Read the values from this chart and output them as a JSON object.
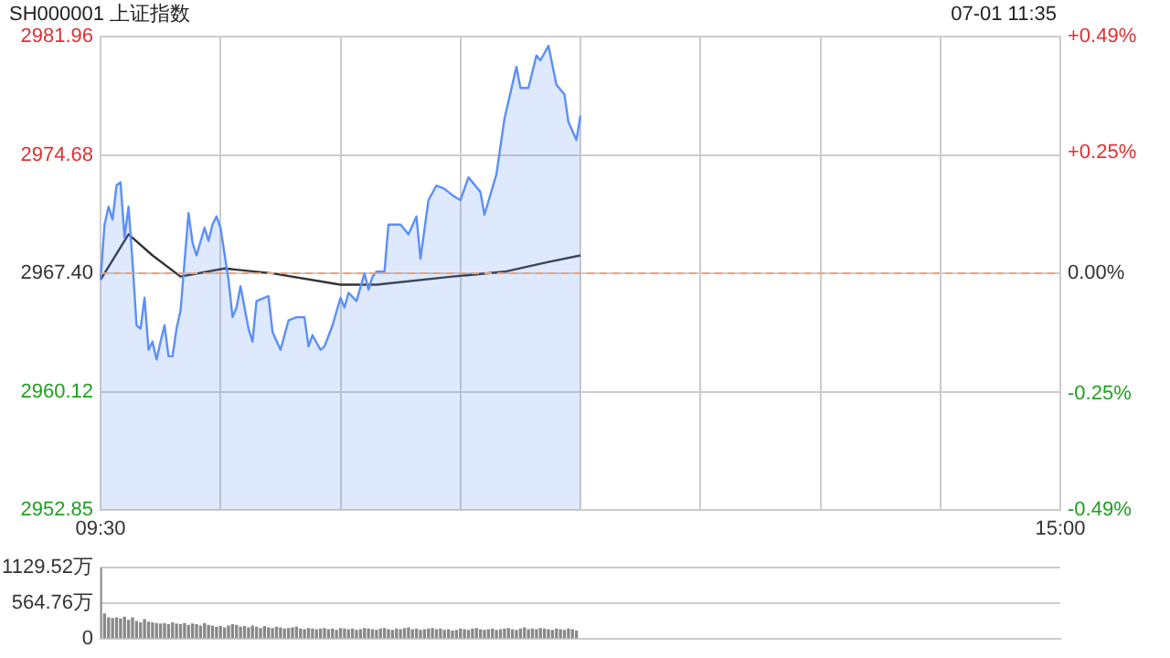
{
  "chart_data": [
    {
      "type": "area",
      "title": "SH000001 上证指数",
      "annotations": [
        "07-01 11:35"
      ],
      "categories": [
        "09:30",
        null,
        null,
        null,
        null,
        null,
        null,
        null,
        null,
        null,
        null,
        null,
        null,
        null,
        null,
        null,
        null,
        null,
        null,
        null,
        null,
        null,
        null,
        null,
        null,
        null,
        null,
        null,
        null,
        null,
        null,
        null,
        null,
        null,
        null,
        null,
        null,
        null,
        null,
        null,
        null,
        null,
        null,
        null,
        null,
        null,
        null,
        null,
        null,
        null,
        null,
        null,
        null,
        null,
        null,
        null,
        null,
        null,
        null,
        null,
        null,
        null,
        null,
        null,
        null,
        null,
        null,
        null,
        null,
        null,
        null,
        null,
        null,
        null,
        null,
        null,
        null,
        null,
        null,
        null,
        null,
        null,
        null,
        null,
        null,
        null,
        null,
        null,
        null,
        null,
        null,
        null,
        null,
        null,
        null,
        null,
        null,
        null,
        null,
        null,
        null,
        null,
        null,
        null,
        null,
        null,
        null,
        null,
        null,
        null,
        null,
        null,
        null,
        null,
        null,
        null,
        null,
        null,
        null,
        null,
        null,
        null,
        null,
        null,
        null,
        null,
        null,
        null,
        null,
        null,
        null,
        null,
        null,
        null,
        null,
        null,
        null,
        null,
        null,
        null,
        null,
        null,
        null,
        null,
        null,
        null,
        null,
        null,
        null,
        null,
        null,
        null,
        null,
        null,
        null,
        null,
        null,
        null,
        null,
        null,
        null,
        null,
        null,
        null,
        null,
        null,
        null,
        null,
        null,
        null,
        null,
        null,
        null,
        null,
        null,
        null,
        null,
        null,
        null,
        null,
        null,
        null,
        null,
        null,
        null,
        null,
        null,
        null,
        null,
        null,
        null,
        null,
        null,
        null,
        null,
        null,
        null,
        null,
        null,
        null,
        null,
        null,
        null,
        null,
        null,
        null,
        null,
        null,
        null,
        null,
        null,
        null,
        null,
        null,
        null,
        null,
        null,
        null,
        null,
        null,
        null,
        null,
        null,
        null,
        null,
        null,
        null,
        null,
        null,
        null,
        null,
        null,
        null,
        null,
        null,
        null,
        null,
        null,
        null,
        null,
        "15:00"
      ],
      "ylim": [
        2952.85,
        2981.96
      ],
      "yticks": [
        2952.85,
        2960.12,
        {
          "value": 2967.4,
          "label": "2967.40"
        },
        2974.68,
        2981.96
      ],
      "y2lim": [
        -0.49,
        0.49
      ],
      "y2ticks": [
        {
          "value": -0.49,
          "label": "-0.49%"
        },
        {
          "value": -0.25,
          "label": "-0.25%"
        },
        {
          "value": 0,
          "label": "0.00%"
        },
        {
          "value": 0.25,
          "label": "+0.25%"
        },
        {
          "value": 0.49,
          "label": "+0.49%"
        }
      ],
      "ref_lines": [
        {
          "axis": "y",
          "value": 2967.4,
          "color": "#f0a070",
          "line_style": "dashed"
        }
      ],
      "grid": true,
      "legend": false,
      "marker": "none",
      "series": [
        {
          "color": "#5b8ff9",
          "values": [
            2967.0,
            2970.4,
            2971.5,
            2970.7,
            2972.8,
            2973.0,
            2969.6,
            2971.5,
            2968.1,
            2964.2,
            2964.0,
            2965.9,
            2962.7,
            2963.2,
            2962.1,
            2963.2,
            2964.2,
            2962.3,
            2962.3,
            2964.0,
            2965.1,
            null,
            2971.1,
            2969.3,
            2968.5,
            null,
            2970.2,
            2969.4,
            2970.4,
            2970.9,
            2970.2,
            null,
            2967.0,
            2964.7,
            2965.3,
            2966.6,
            null,
            2964.0,
            2963.2,
            2965.7,
            null,
            null,
            2966.0,
            2963.8,
            null,
            2962.7,
            null,
            2964.5,
            null,
            2964.7,
            null,
            2964.7,
            2962.9,
            2963.6,
            null,
            2962.7,
            2962.9,
            null,
            2964.2,
            null,
            2965.9,
            2965.3,
            2966.2,
            null,
            2965.7,
            null,
            2967.4,
            2966.4,
            2967.2,
            2967.5,
            null,
            2967.5,
            2970.4,
            null,
            null,
            2970.4,
            null,
            2969.8,
            null,
            2970.9,
            2968.3,
            null,
            2971.9,
            null,
            2972.8,
            null,
            2972.6,
            null,
            2972.2,
            null,
            2971.9,
            null,
            2973.3,
            null,
            null,
            2972.4,
            2971.0,
            null,
            null,
            2973.5,
            null,
            2976.9,
            null,
            null,
            2980.1,
            2978.8,
            null,
            2978.8,
            null,
            2980.8,
            2980.5,
            null,
            2981.4,
            null,
            2979.0,
            null,
            2978.4,
            2976.7,
            null,
            2975.6,
            2977.1,
            null,
            null,
            null,
            null,
            null,
            null,
            null,
            null,
            null,
            null,
            null,
            null,
            null,
            null,
            null,
            null,
            null,
            null,
            null,
            null,
            null,
            null,
            null,
            null,
            null,
            null,
            null,
            null,
            null,
            null,
            null,
            null,
            null,
            null,
            null,
            null,
            null,
            null,
            null,
            null,
            null,
            null,
            null,
            null,
            null,
            null,
            null,
            null,
            null,
            null,
            null,
            null,
            null,
            null,
            null,
            null,
            null,
            null,
            null,
            null,
            null,
            null,
            null,
            null,
            null,
            null,
            null,
            null,
            null,
            null,
            null,
            null,
            null,
            null,
            null,
            null,
            null,
            null,
            null,
            null,
            null,
            null,
            null,
            null,
            null,
            null,
            null,
            null,
            null,
            null,
            null,
            null,
            null,
            null,
            null,
            null,
            null,
            null,
            null,
            null,
            null,
            null,
            null,
            null,
            null,
            null,
            null,
            null,
            null,
            null,
            null,
            null,
            null,
            null,
            null,
            null,
            null,
            null,
            null,
            null
          ]
        },
        {
          "type": "line",
          "color": "#333333",
          "values": [
            2967.0,
            null,
            null,
            null,
            null,
            null,
            null,
            2969.8,
            null,
            null,
            null,
            null,
            null,
            2968.5,
            null,
            null,
            null,
            null,
            null,
            null,
            2967.2,
            null,
            null,
            null,
            null,
            null,
            null,
            null,
            null,
            null,
            null,
            2967.7,
            null,
            null,
            null,
            null,
            null,
            null,
            null,
            null,
            null,
            null,
            null,
            2967.4,
            null,
            null,
            null,
            null,
            null,
            null,
            null,
            null,
            null,
            null,
            null,
            null,
            null,
            null,
            null,
            null,
            2966.7,
            null,
            null,
            null,
            null,
            null,
            null,
            null,
            null,
            2966.7,
            null,
            null,
            null,
            null,
            null,
            null,
            null,
            null,
            null,
            null,
            null,
            null,
            null,
            null,
            null,
            null,
            null,
            null,
            2967.2,
            null,
            null,
            null,
            null,
            null,
            null,
            null,
            null,
            null,
            null,
            null,
            null,
            2967.5,
            null,
            null,
            null,
            null,
            null,
            null,
            null,
            null,
            null,
            null,
            2968.1,
            null,
            null,
            null,
            null,
            null,
            null,
            null,
            2968.5,
            null,
            null,
            null,
            null,
            null,
            null,
            null,
            null,
            null,
            null,
            null,
            null,
            null,
            null,
            null,
            null,
            null,
            null,
            null,
            null,
            null,
            null,
            null,
            null,
            null,
            null,
            null,
            null,
            null,
            null,
            null,
            null,
            null,
            null,
            null,
            null,
            null,
            null,
            null,
            null,
            null,
            null,
            null,
            null,
            null,
            null,
            null,
            null,
            null,
            null,
            null,
            null,
            null,
            null,
            null,
            null,
            null,
            null,
            null,
            null,
            null,
            null,
            null,
            null,
            null,
            null,
            null,
            null,
            null,
            null,
            null,
            null,
            null,
            null,
            null,
            null,
            null,
            null,
            null,
            null,
            null,
            null,
            null,
            null,
            null,
            null,
            null,
            null,
            null,
            null,
            null,
            null,
            null,
            null,
            null,
            null,
            null,
            null,
            null,
            null,
            null,
            null,
            null,
            null,
            null,
            null,
            null,
            null,
            null,
            null,
            null,
            null,
            null,
            null,
            null,
            null,
            null,
            null,
            null,
            null
          ]
        }
      ]
    },
    {
      "type": "bar",
      "tick_labels": "y",
      "grid": "y",
      "legend": false,
      "color": "#888888",
      "categories": [
        null,
        null,
        null,
        null,
        null,
        null,
        null,
        null,
        null,
        null,
        null,
        null,
        null,
        null,
        null,
        null,
        null,
        null,
        null,
        null,
        null,
        null,
        null,
        null,
        null,
        null,
        null,
        null,
        null,
        null,
        null,
        null,
        null,
        null,
        null,
        null,
        null,
        null,
        null,
        null,
        null,
        null,
        null,
        null,
        null,
        null,
        null,
        null,
        null,
        null,
        null,
        null,
        null,
        null,
        null,
        null,
        null,
        null,
        null,
        null,
        null,
        null,
        null,
        null,
        null,
        null,
        null,
        null,
        null,
        null,
        null,
        null,
        null,
        null,
        null,
        null,
        null,
        null,
        null,
        null,
        null,
        null,
        null,
        null,
        null,
        null,
        null,
        null,
        null,
        null,
        null,
        null,
        null,
        null,
        null,
        null,
        null,
        null,
        null,
        null,
        null,
        null,
        null,
        null,
        null,
        null,
        null,
        null,
        null,
        null,
        null,
        null,
        null,
        null,
        null,
        null,
        null,
        null,
        null,
        null,
        null,
        null,
        null,
        null,
        null,
        null,
        null,
        null,
        null,
        null,
        null,
        null,
        null,
        null,
        null,
        null,
        null,
        null,
        null,
        null,
        null,
        null,
        null,
        null,
        null,
        null,
        null,
        null,
        null,
        null,
        null,
        null,
        null,
        null,
        null,
        null,
        null,
        null,
        null,
        null,
        null,
        null,
        null,
        null,
        null,
        null,
        null,
        null,
        null,
        null,
        null,
        null,
        null,
        null,
        null,
        null,
        null,
        null,
        null,
        null,
        null,
        null,
        null,
        null,
        null,
        null,
        null,
        null,
        null,
        null,
        null,
        null,
        null,
        null,
        null,
        null,
        null,
        null,
        null,
        null,
        null,
        null,
        null,
        null,
        null,
        null,
        null,
        null,
        null,
        null,
        null,
        null,
        null,
        null,
        null,
        null,
        null,
        null,
        null,
        null,
        null,
        null,
        null,
        null,
        null,
        null,
        null,
        null,
        null,
        null,
        null,
        null,
        null,
        null,
        null,
        null,
        null,
        null,
        null,
        null,
        null
      ],
      "ylim": [
        0,
        1129.52
      ],
      "yticks": [
        0,
        {
          "value": 564.76,
          "label": "564.76万"
        },
        {
          "value": 1129.52,
          "label": "1129.52万"
        }
      ],
      "values": [
        1120,
        390,
        330,
        320,
        330,
        310,
        340,
        290,
        330,
        270,
        250,
        300,
        260,
        250,
        240,
        230,
        240,
        220,
        250,
        230,
        220,
        240,
        210,
        230,
        220,
        200,
        240,
        210,
        200,
        180,
        190,
        170,
        200,
        220,
        210,
        180,
        190,
        170,
        200,
        180,
        160,
        190,
        170,
        160,
        180,
        170,
        150,
        160,
        170,
        180,
        150,
        140,
        160,
        150,
        140,
        150,
        160,
        140,
        150,
        130,
        160,
        150,
        140,
        150,
        130,
        140,
        160,
        150,
        140,
        130,
        150,
        160,
        140,
        130,
        150,
        140,
        160,
        170,
        140,
        150,
        130,
        140,
        150,
        160,
        140,
        150,
        130,
        140,
        120,
        130,
        150,
        140,
        130,
        150,
        160,
        140,
        130,
        140,
        150,
        130,
        140,
        150,
        160,
        140,
        130,
        150,
        170,
        140,
        150,
        140,
        160,
        150,
        140,
        130,
        150,
        140,
        130,
        150,
        140,
        120,
        null,
        null,
        null,
        null,
        null,
        null,
        null,
        null,
        null,
        null,
        null,
        null,
        null,
        null,
        null,
        null,
        null,
        null,
        null,
        null,
        null,
        null,
        null,
        null,
        null,
        null,
        null,
        null,
        null,
        null,
        null,
        null,
        null,
        null,
        null,
        null,
        null,
        null,
        null,
        null,
        null,
        null,
        null,
        null,
        null,
        null,
        null,
        null,
        null,
        null,
        null,
        null,
        null,
        null,
        null,
        null,
        null,
        null,
        null,
        null,
        null,
        null,
        null,
        null,
        null,
        null,
        null,
        null,
        null,
        null,
        null,
        null,
        null,
        null,
        null,
        null,
        null,
        null,
        null,
        null,
        null,
        null,
        null,
        null,
        null,
        null,
        null,
        null,
        null,
        null,
        null,
        null,
        null,
        null,
        null,
        null,
        null,
        null,
        null,
        null,
        null,
        null,
        null,
        null,
        null,
        null,
        null,
        null,
        null,
        null,
        null,
        null,
        null,
        null,
        null,
        null,
        null,
        null,
        null,
        null,
        null
      ]
    }
  ]
}
